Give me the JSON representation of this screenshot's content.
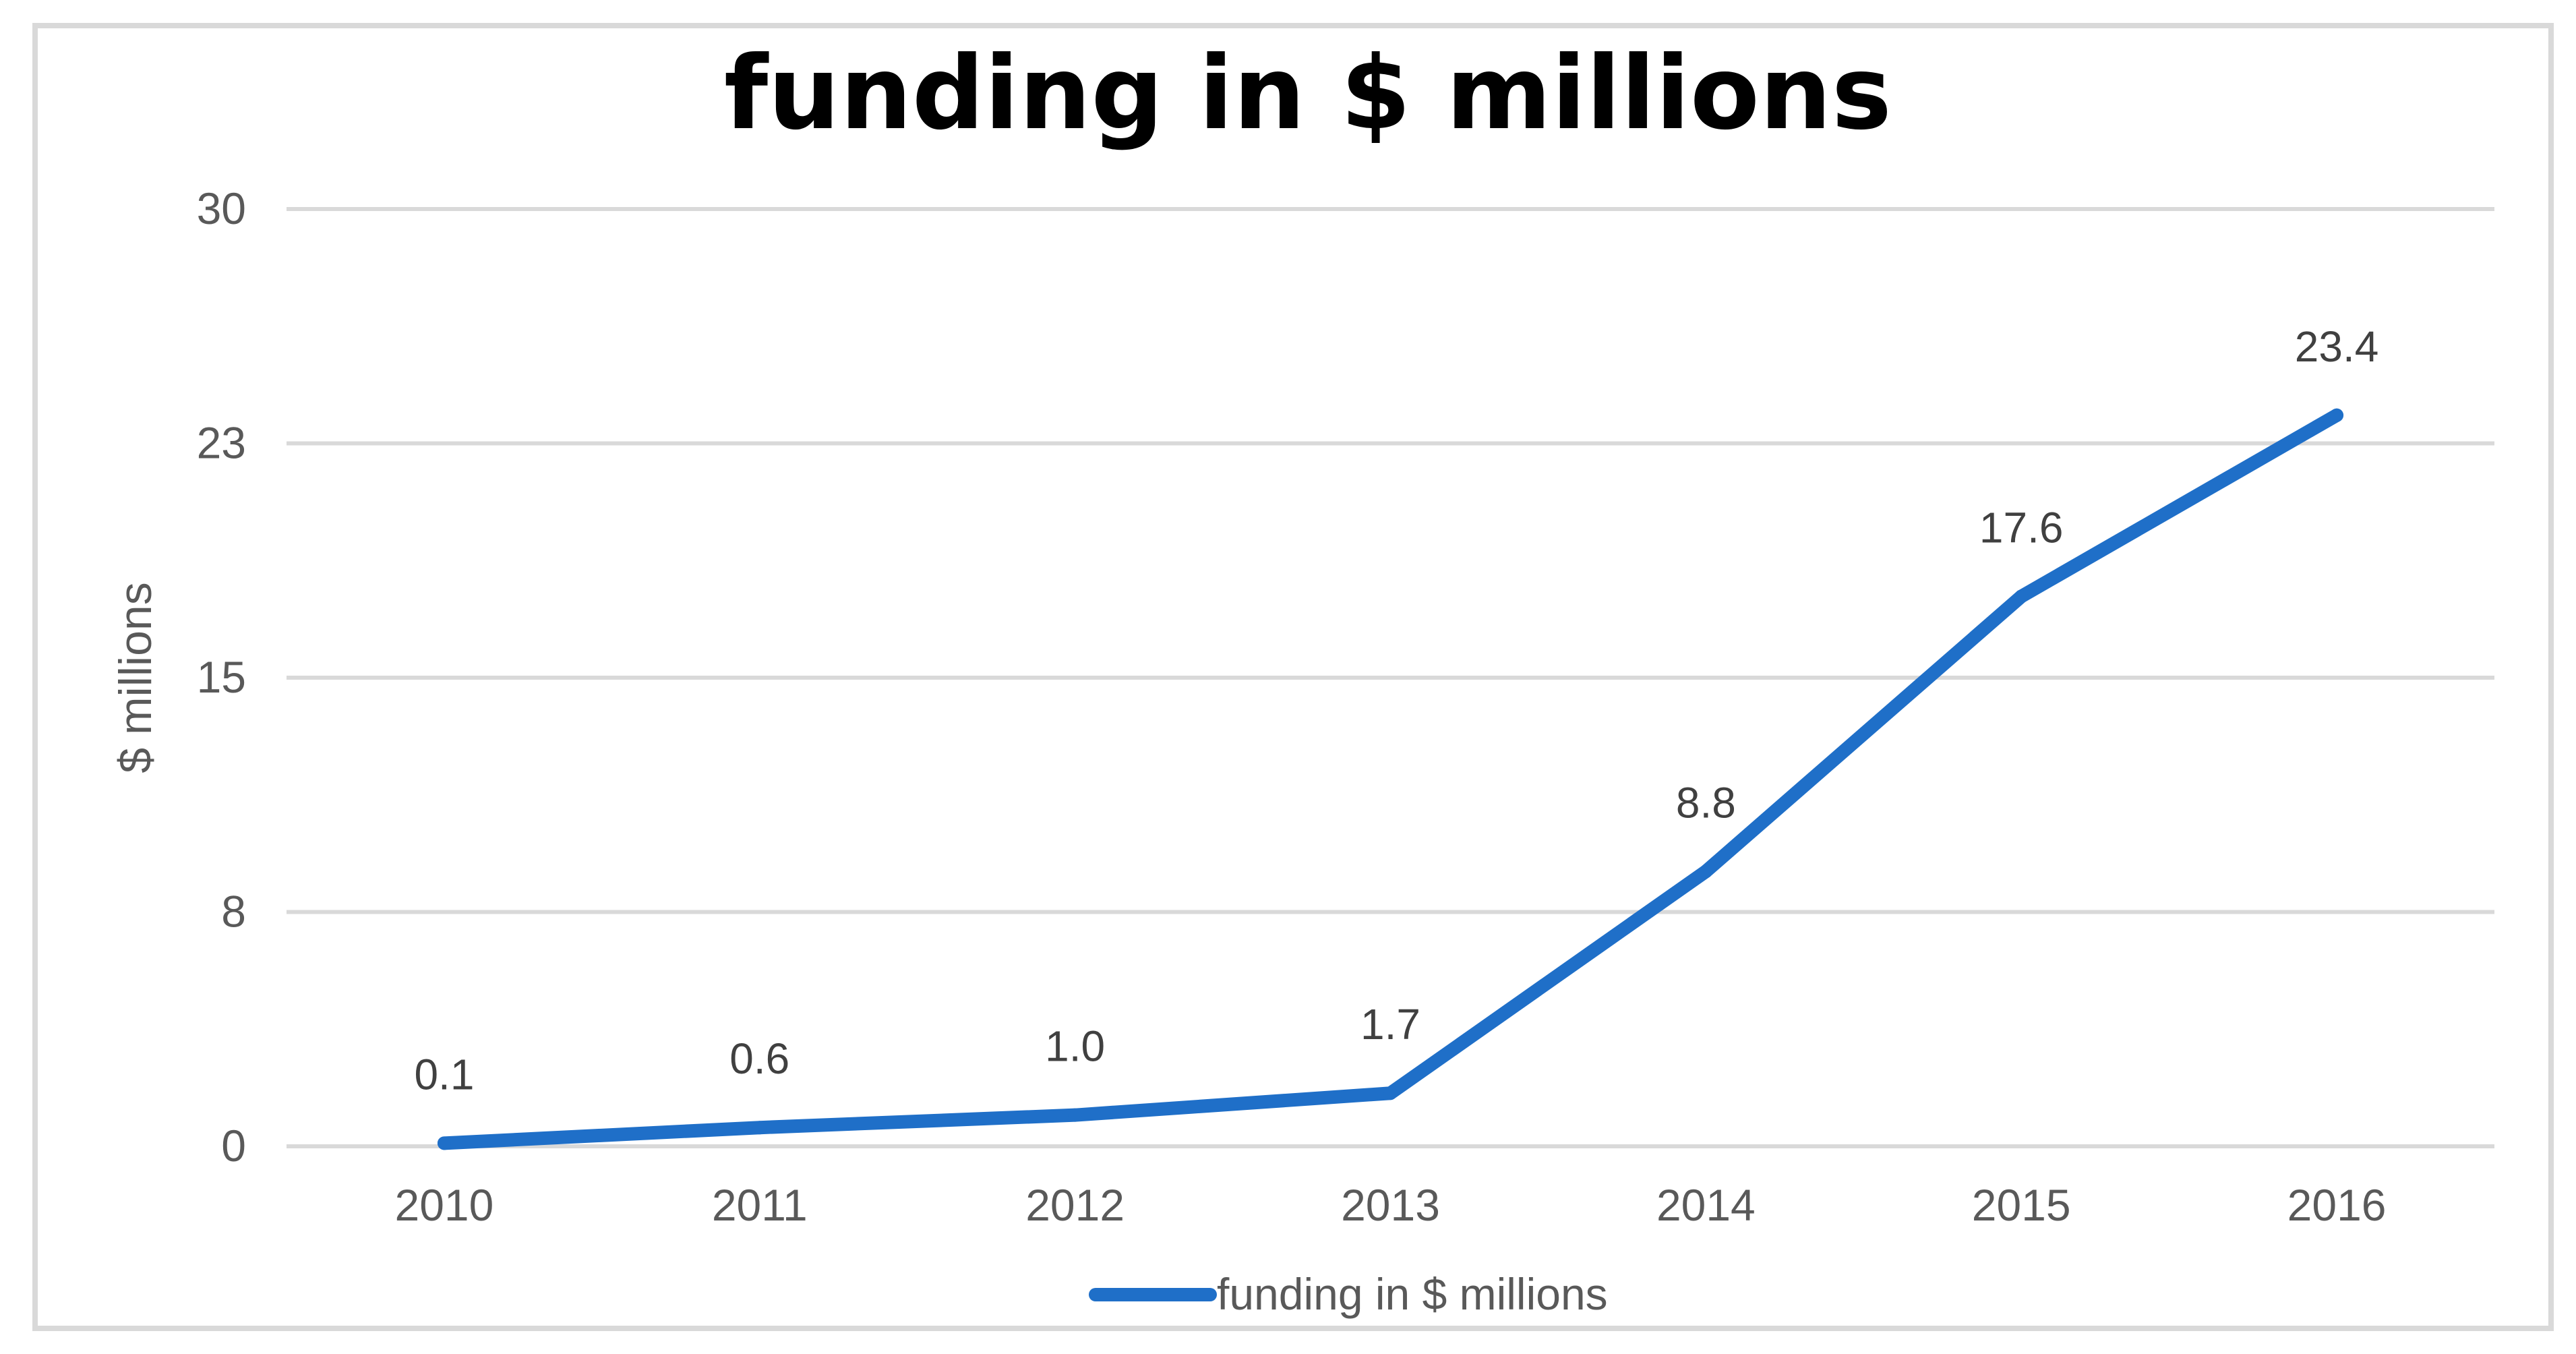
{
  "chart_data": {
    "type": "line",
    "title": "funding in $ millions",
    "ylabel": "$ millions",
    "xlabel": "",
    "categories": [
      "2010",
      "2011",
      "2012",
      "2013",
      "2014",
      "2015",
      "2016"
    ],
    "series": [
      {
        "name": "funding in $ millions",
        "values": [
          0.1,
          0.6,
          1.0,
          1.7,
          8.8,
          17.6,
          23.4
        ],
        "labels": [
          "0.1",
          "0.6",
          "1.0",
          "1.7",
          "8.8",
          "17.6",
          "23.4"
        ],
        "color": "#1f6fc8"
      }
    ],
    "ylim": [
      0,
      30
    ],
    "yticks": [
      0,
      7.5,
      15,
      22.5,
      30
    ],
    "ytick_labels": [
      "0",
      "8",
      "15",
      "23",
      "30"
    ],
    "grid": true,
    "legend": "bottom-center"
  }
}
